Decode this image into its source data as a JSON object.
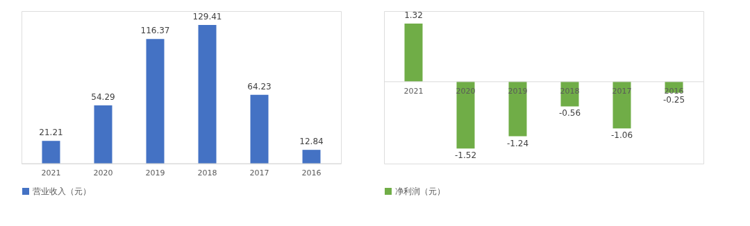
{
  "chart_data": [
    {
      "type": "bar",
      "categories": [
        "2021",
        "2020",
        "2019",
        "2018",
        "2017",
        "2016"
      ],
      "series": [
        {
          "name": "营业收入（元）",
          "color": "#4472c4",
          "values": [
            21.21,
            54.29,
            116.37,
            129.41,
            64.23,
            12.84
          ]
        }
      ],
      "data_labels": true,
      "legend": "bottom"
    },
    {
      "type": "bar",
      "categories": [
        "2021",
        "2020",
        "2019",
        "2018",
        "2017",
        "2016"
      ],
      "series": [
        {
          "name": "净利润（元）",
          "color": "#70ad47",
          "values": [
            1.32,
            -1.52,
            -1.24,
            -0.56,
            -1.06,
            -0.25
          ]
        }
      ],
      "data_labels": true,
      "legend": "bottom"
    }
  ]
}
